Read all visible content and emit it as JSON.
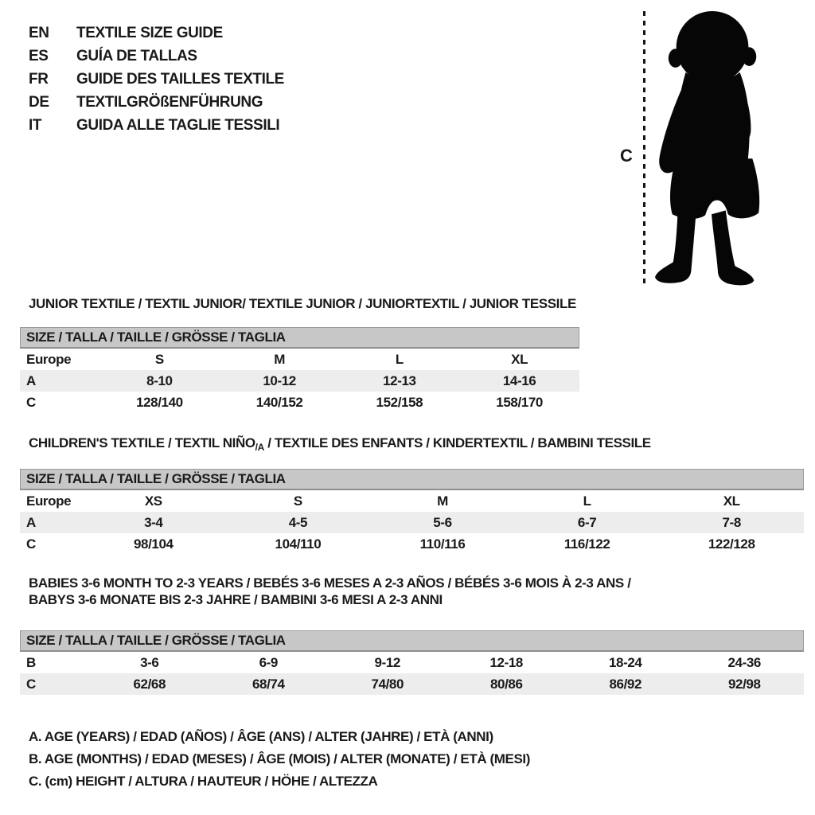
{
  "languages": [
    {
      "code": "EN",
      "title": "TEXTILE SIZE GUIDE"
    },
    {
      "code": "ES",
      "title": "GUÍA DE TALLAS"
    },
    {
      "code": "FR",
      "title": "GUIDE DES TAILLES TEXTILE"
    },
    {
      "code": "DE",
      "title": "TEXTILGRÖßENFÜHRUNG"
    },
    {
      "code": "IT",
      "title": "GUIDA ALLE TAGLIE TESSILI"
    }
  ],
  "figure": {
    "height_label": "C"
  },
  "sections": {
    "junior": {
      "heading": "JUNIOR TEXTILE / TEXTIL JUNIOR/ TEXTILE JUNIOR / JUNIORTEXTIL / JUNIOR TESSILE",
      "size_header": "SIZE / TALLA / TAILLE / GRÖSSE / TAGLIA",
      "rows": [
        {
          "label": "Europe",
          "values": [
            "S",
            "M",
            "L",
            "XL"
          ]
        },
        {
          "label": "A",
          "values": [
            "8-10",
            "10-12",
            "12-13",
            "14-16"
          ]
        },
        {
          "label": "C",
          "values": [
            "128/140",
            "140/152",
            "152/158",
            "158/170"
          ]
        }
      ]
    },
    "children": {
      "heading_pre": "CHILDREN'S TEXTILE / TEXTIL NIÑO",
      "heading_sub": "/A",
      "heading_post": " / TEXTILE DES ENFANTS / KINDERTEXTIL / BAMBINI TESSILE",
      "size_header": "SIZE / TALLA / TAILLE / GRÖSSE / TAGLIA",
      "rows": [
        {
          "label": "Europe",
          "values": [
            "XS",
            "S",
            "M",
            "L",
            "XL"
          ]
        },
        {
          "label": "A",
          "values": [
            "3-4",
            "4-5",
            "5-6",
            "6-7",
            "7-8"
          ]
        },
        {
          "label": "C",
          "values": [
            "98/104",
            "104/110",
            "110/116",
            "116/122",
            "122/128"
          ]
        }
      ]
    },
    "babies": {
      "heading_line1": "BABIES 3-6 MONTH TO 2-3 YEARS / BEBÉS 3-6 MESES A 2-3 AÑOS / BÉBÉS 3-6 MOIS À 2-3 ANS /",
      "heading_line2": "BABYS 3-6 MONATE BIS 2-3 JAHRE / BAMBINI 3-6 MESI A 2-3 ANNI",
      "size_header": "SIZE / TALLA / TAILLE / GRÖSSE / TAGLIA",
      "rows": [
        {
          "label": "B",
          "values": [
            "3-6",
            "6-9",
            "9-12",
            "12-18",
            "18-24",
            "24-36"
          ]
        },
        {
          "label": "C",
          "values": [
            "62/68",
            "68/74",
            "74/80",
            "80/86",
            "86/92",
            "92/98"
          ]
        }
      ]
    }
  },
  "notes": [
    "A. AGE (YEARS) / EDAD (AÑOS) / ÂGE (ANS) / ALTER (JAHRE) / ETÀ (ANNI)",
    "B. AGE (MONTHS) / EDAD (MESES) / ÂGE (MOIS) / ALTER (MONATE) / ETÀ (MESI)",
    "C. (cm) HEIGHT / ALTURA / HAUTEUR / HÖHE / ALTEZZA"
  ],
  "colors": {
    "text": "#1a1a1a",
    "header_bar": "#c7c7c7",
    "row_stripe": "#ededed",
    "silhouette": "#060606"
  }
}
